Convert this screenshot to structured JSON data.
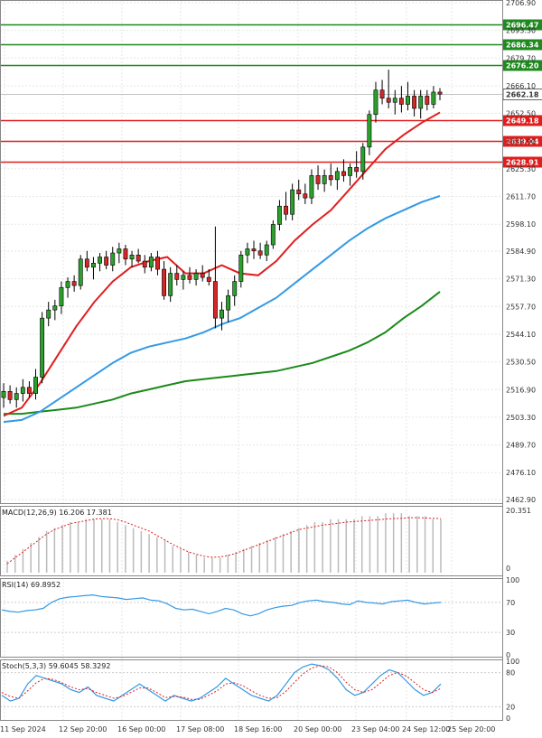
{
  "chart_data": {
    "type": "candlestick",
    "main": {
      "price_axis_ticks": [
        "2706.90",
        "2693.30",
        "2679.70",
        "2666.10",
        "2652.50",
        "2638.90",
        "2625.30",
        "2611.70",
        "2598.10",
        "2584.90",
        "2571.30",
        "2557.70",
        "2544.10",
        "2530.50",
        "2516.90",
        "2503.30",
        "2489.70",
        "2476.10",
        "2462.90"
      ],
      "ylim": [
        2462.9,
        2706.9
      ],
      "current_price": "2662.18",
      "resistance_levels": [
        "2696.47",
        "2686.34",
        "2676.20"
      ],
      "support_levels": [
        "2649.18",
        "2639.04",
        "2628.91"
      ],
      "candles": [
        [
          2513,
          2520,
          2508,
          2516
        ],
        [
          2516,
          2519,
          2510,
          2512
        ],
        [
          2512,
          2518,
          2508,
          2515
        ],
        [
          2515,
          2522,
          2511,
          2518
        ],
        [
          2518,
          2521,
          2513,
          2515
        ],
        [
          2515,
          2527,
          2512,
          2523
        ],
        [
          2523,
          2555,
          2520,
          2552
        ],
        [
          2552,
          2560,
          2548,
          2556
        ],
        [
          2556,
          2561,
          2551,
          2558
        ],
        [
          2558,
          2570,
          2554,
          2567
        ],
        [
          2567,
          2572,
          2562,
          2570
        ],
        [
          2570,
          2573,
          2565,
          2568
        ],
        [
          2568,
          2583,
          2566,
          2581
        ],
        [
          2581,
          2585,
          2575,
          2577
        ],
        [
          2577,
          2582,
          2571,
          2579
        ],
        [
          2579,
          2584,
          2575,
          2582
        ],
        [
          2582,
          2585,
          2576,
          2578
        ],
        [
          2578,
          2587,
          2575,
          2584
        ],
        [
          2584,
          2589,
          2579,
          2586
        ],
        [
          2586,
          2588,
          2578,
          2581
        ],
        [
          2581,
          2585,
          2577,
          2583
        ],
        [
          2583,
          2586,
          2579,
          2580
        ],
        [
          2580,
          2583,
          2574,
          2577
        ],
        [
          2577,
          2584,
          2575,
          2582
        ],
        [
          2582,
          2585,
          2573,
          2576
        ],
        [
          2576,
          2580,
          2561,
          2563
        ],
        [
          2563,
          2577,
          2560,
          2574
        ],
        [
          2574,
          2578,
          2568,
          2571
        ],
        [
          2571,
          2575,
          2566,
          2573
        ],
        [
          2573,
          2577,
          2569,
          2571
        ],
        [
          2571,
          2576,
          2568,
          2574
        ],
        [
          2574,
          2578,
          2570,
          2572
        ],
        [
          2572,
          2576,
          2568,
          2570
        ],
        [
          2570,
          2597,
          2547,
          2552
        ],
        [
          2552,
          2560,
          2546,
          2556
        ],
        [
          2556,
          2566,
          2550,
          2563
        ],
        [
          2563,
          2573,
          2558,
          2570
        ],
        [
          2570,
          2585,
          2567,
          2583
        ],
        [
          2583,
          2589,
          2579,
          2586
        ],
        [
          2586,
          2590,
          2581,
          2585
        ],
        [
          2585,
          2589,
          2581,
          2583
        ],
        [
          2583,
          2590,
          2580,
          2588
        ],
        [
          2588,
          2600,
          2586,
          2598
        ],
        [
          2598,
          2610,
          2595,
          2607
        ],
        [
          2607,
          2614,
          2600,
          2603
        ],
        [
          2603,
          2618,
          2600,
          2615
        ],
        [
          2615,
          2620,
          2610,
          2613
        ],
        [
          2613,
          2618,
          2608,
          2611
        ],
        [
          2611,
          2625,
          2608,
          2622
        ],
        [
          2622,
          2627,
          2615,
          2618
        ],
        [
          2618,
          2625,
          2614,
          2622
        ],
        [
          2622,
          2628,
          2617,
          2620
        ],
        [
          2620,
          2626,
          2615,
          2624
        ],
        [
          2624,
          2630,
          2619,
          2622
        ],
        [
          2622,
          2628,
          2617,
          2626
        ],
        [
          2626,
          2634,
          2621,
          2624
        ],
        [
          2624,
          2638,
          2620,
          2636
        ],
        [
          2636,
          2654,
          2632,
          2652
        ],
        [
          2652,
          2668,
          2648,
          2664
        ],
        [
          2664,
          2669,
          2657,
          2660
        ],
        [
          2660,
          2674,
          2655,
          2658
        ],
        [
          2658,
          2664,
          2652,
          2660
        ],
        [
          2660,
          2666,
          2653,
          2657
        ],
        [
          2657,
          2668,
          2654,
          2661
        ],
        [
          2661,
          2664,
          2651,
          2655
        ],
        [
          2655,
          2664,
          2650,
          2661
        ],
        [
          2661,
          2664,
          2654,
          2657
        ],
        [
          2657,
          2666,
          2655,
          2663
        ],
        [
          2663,
          2665,
          2659,
          2662
        ]
      ],
      "ma_slow_green": [
        2505,
        2505,
        2506,
        2507,
        2508,
        2510,
        2512,
        2515,
        2517,
        2519,
        2521,
        2522,
        2523,
        2524,
        2525,
        2526,
        2528,
        2530,
        2533,
        2536,
        2540,
        2545,
        2552,
        2558,
        2565
      ],
      "ma_mid_blue": [
        2501,
        2502,
        2506,
        2512,
        2518,
        2524,
        2530,
        2535,
        2538,
        2540,
        2542,
        2545,
        2549,
        2552,
        2557,
        2562,
        2569,
        2576,
        2583,
        2590,
        2596,
        2601,
        2605,
        2609,
        2612
      ],
      "ma_fast_red": [
        2504,
        2508,
        2520,
        2534,
        2548,
        2560,
        2570,
        2577,
        2580,
        2582,
        2574,
        2574,
        2578,
        2574,
        2573,
        2580,
        2590,
        2598,
        2605,
        2615,
        2625,
        2635,
        2642,
        2648,
        2653
      ]
    },
    "macd": {
      "label": "MACD(12,26,9) 16.206 17.381",
      "axis_top": "20.351",
      "axis_bottom": "0",
      "histogram": [
        4,
        6,
        8,
        10,
        12,
        14,
        15,
        16,
        17,
        17,
        18,
        18,
        18,
        18,
        17,
        16,
        15,
        14,
        13,
        12,
        11,
        9,
        8,
        7,
        6,
        5,
        5,
        5,
        6,
        7,
        8,
        9,
        10,
        11,
        12,
        13,
        14,
        15,
        16,
        17,
        17,
        18,
        18,
        18,
        18,
        19,
        19,
        19,
        20,
        20,
        20,
        19,
        19,
        19,
        18,
        18
      ],
      "signal": [
        3,
        5,
        7,
        9,
        11,
        13,
        14.5,
        15.5,
        16.5,
        17,
        17.5,
        18,
        18.2,
        18.2,
        17.8,
        17,
        16,
        15,
        14,
        12.5,
        11,
        9.5,
        8.2,
        7,
        6.2,
        5.5,
        5.2,
        5.3,
        5.8,
        6.5,
        7.5,
        8.5,
        9.5,
        10.5,
        11.5,
        12.5,
        13.5,
        14.5,
        15,
        15.5,
        16,
        16.3,
        16.6,
        17,
        17.2,
        17.4,
        17.6,
        17.8,
        18,
        18.2,
        18.3,
        18.5,
        18.5,
        18.4,
        18.3,
        18.2
      ]
    },
    "rsi": {
      "label": "RSI(14) 69.8952",
      "axis_ticks": [
        "100",
        "70",
        "30",
        "0"
      ],
      "values": [
        60,
        58,
        57,
        59,
        60,
        62,
        70,
        75,
        77,
        78,
        79,
        80,
        78,
        77,
        76,
        74,
        75,
        76,
        73,
        72,
        68,
        62,
        60,
        61,
        58,
        55,
        58,
        62,
        60,
        55,
        52,
        55,
        60,
        63,
        65,
        66,
        70,
        72,
        73,
        71,
        70,
        68,
        67,
        72,
        70,
        69,
        68,
        71,
        72,
        73,
        70,
        68,
        69,
        70
      ]
    },
    "stoch": {
      "label": "Stoch(5,3,3) 59.6045 58.3292",
      "axis_ticks": [
        "100",
        "80",
        "20",
        "0"
      ],
      "k": [
        40,
        30,
        35,
        60,
        75,
        70,
        65,
        60,
        50,
        45,
        55,
        40,
        35,
        30,
        40,
        50,
        60,
        50,
        40,
        30,
        40,
        35,
        30,
        35,
        45,
        55,
        70,
        60,
        50,
        40,
        35,
        30,
        40,
        60,
        80,
        90,
        95,
        92,
        85,
        70,
        50,
        40,
        45,
        60,
        75,
        85,
        80,
        65,
        50,
        40,
        45,
        60
      ],
      "d": [
        45,
        38,
        35,
        48,
        62,
        70,
        68,
        62,
        55,
        50,
        52,
        45,
        40,
        35,
        38,
        45,
        53,
        53,
        45,
        36,
        38,
        37,
        33,
        33,
        40,
        48,
        60,
        62,
        57,
        48,
        40,
        35,
        36,
        47,
        63,
        78,
        88,
        92,
        90,
        80,
        63,
        50,
        45,
        50,
        62,
        75,
        80,
        74,
        62,
        50,
        45,
        52
      ]
    },
    "time_labels": [
      "11 Sep 2024",
      "12 Sep 20:00",
      "16 Sep 00:00",
      "17 Sep 08:00",
      "18 Sep 16:00",
      "20 Sep 00:00",
      "23 Sep 04:00",
      "24 Sep 12:00",
      "25 Sep 20:00"
    ]
  }
}
